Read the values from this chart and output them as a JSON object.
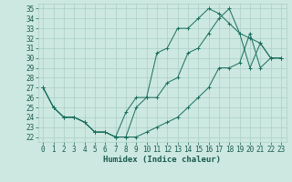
{
  "xlabel": "Humidex (Indice chaleur)",
  "bg_color": "#cce8e0",
  "line_color": "#1a6e5e",
  "grid_color": "#aacfc5",
  "xlim": [
    -0.5,
    23.5
  ],
  "ylim": [
    21.5,
    35.5
  ],
  "xticks": [
    0,
    1,
    2,
    3,
    4,
    5,
    6,
    7,
    8,
    9,
    10,
    11,
    12,
    13,
    14,
    15,
    16,
    17,
    18,
    19,
    20,
    21,
    22,
    23
  ],
  "yticks": [
    22,
    23,
    24,
    25,
    26,
    27,
    28,
    29,
    30,
    31,
    32,
    33,
    34,
    35
  ],
  "line1_x": [
    0,
    1,
    2,
    3,
    4,
    5,
    6,
    7,
    8,
    9,
    10,
    11,
    12,
    13,
    14,
    15,
    16,
    17,
    18,
    19,
    20,
    21,
    22,
    23
  ],
  "line1_y": [
    27,
    25,
    24,
    24,
    23.5,
    22.5,
    22.5,
    22,
    22,
    25,
    26,
    26,
    27.5,
    28,
    30.5,
    31,
    32.5,
    34,
    35,
    32.5,
    32,
    31.5,
    30,
    30
  ],
  "line2_x": [
    0,
    1,
    2,
    3,
    4,
    5,
    6,
    7,
    8,
    9,
    10,
    11,
    12,
    13,
    14,
    15,
    16,
    17,
    18,
    19,
    20,
    21,
    22,
    23
  ],
  "line2_y": [
    27,
    25,
    24,
    24,
    23.5,
    22.5,
    22.5,
    22,
    24.5,
    26,
    26,
    30.5,
    31,
    33,
    33,
    34,
    35,
    34.5,
    33.5,
    32.5,
    29,
    31.5,
    30,
    30
  ],
  "line3_x": [
    0,
    1,
    2,
    3,
    4,
    5,
    6,
    7,
    8,
    9,
    10,
    11,
    12,
    13,
    14,
    15,
    16,
    17,
    18,
    19,
    20,
    21,
    22,
    23
  ],
  "line3_y": [
    27,
    25,
    24,
    24,
    23.5,
    22.5,
    22.5,
    22,
    22,
    22,
    22.5,
    23,
    23.5,
    24,
    25,
    26,
    27,
    29,
    29,
    29.5,
    32.5,
    29,
    30,
    30
  ],
  "tick_fontsize": 5.5,
  "xlabel_fontsize": 6.5,
  "tick_color": "#1a5a50"
}
